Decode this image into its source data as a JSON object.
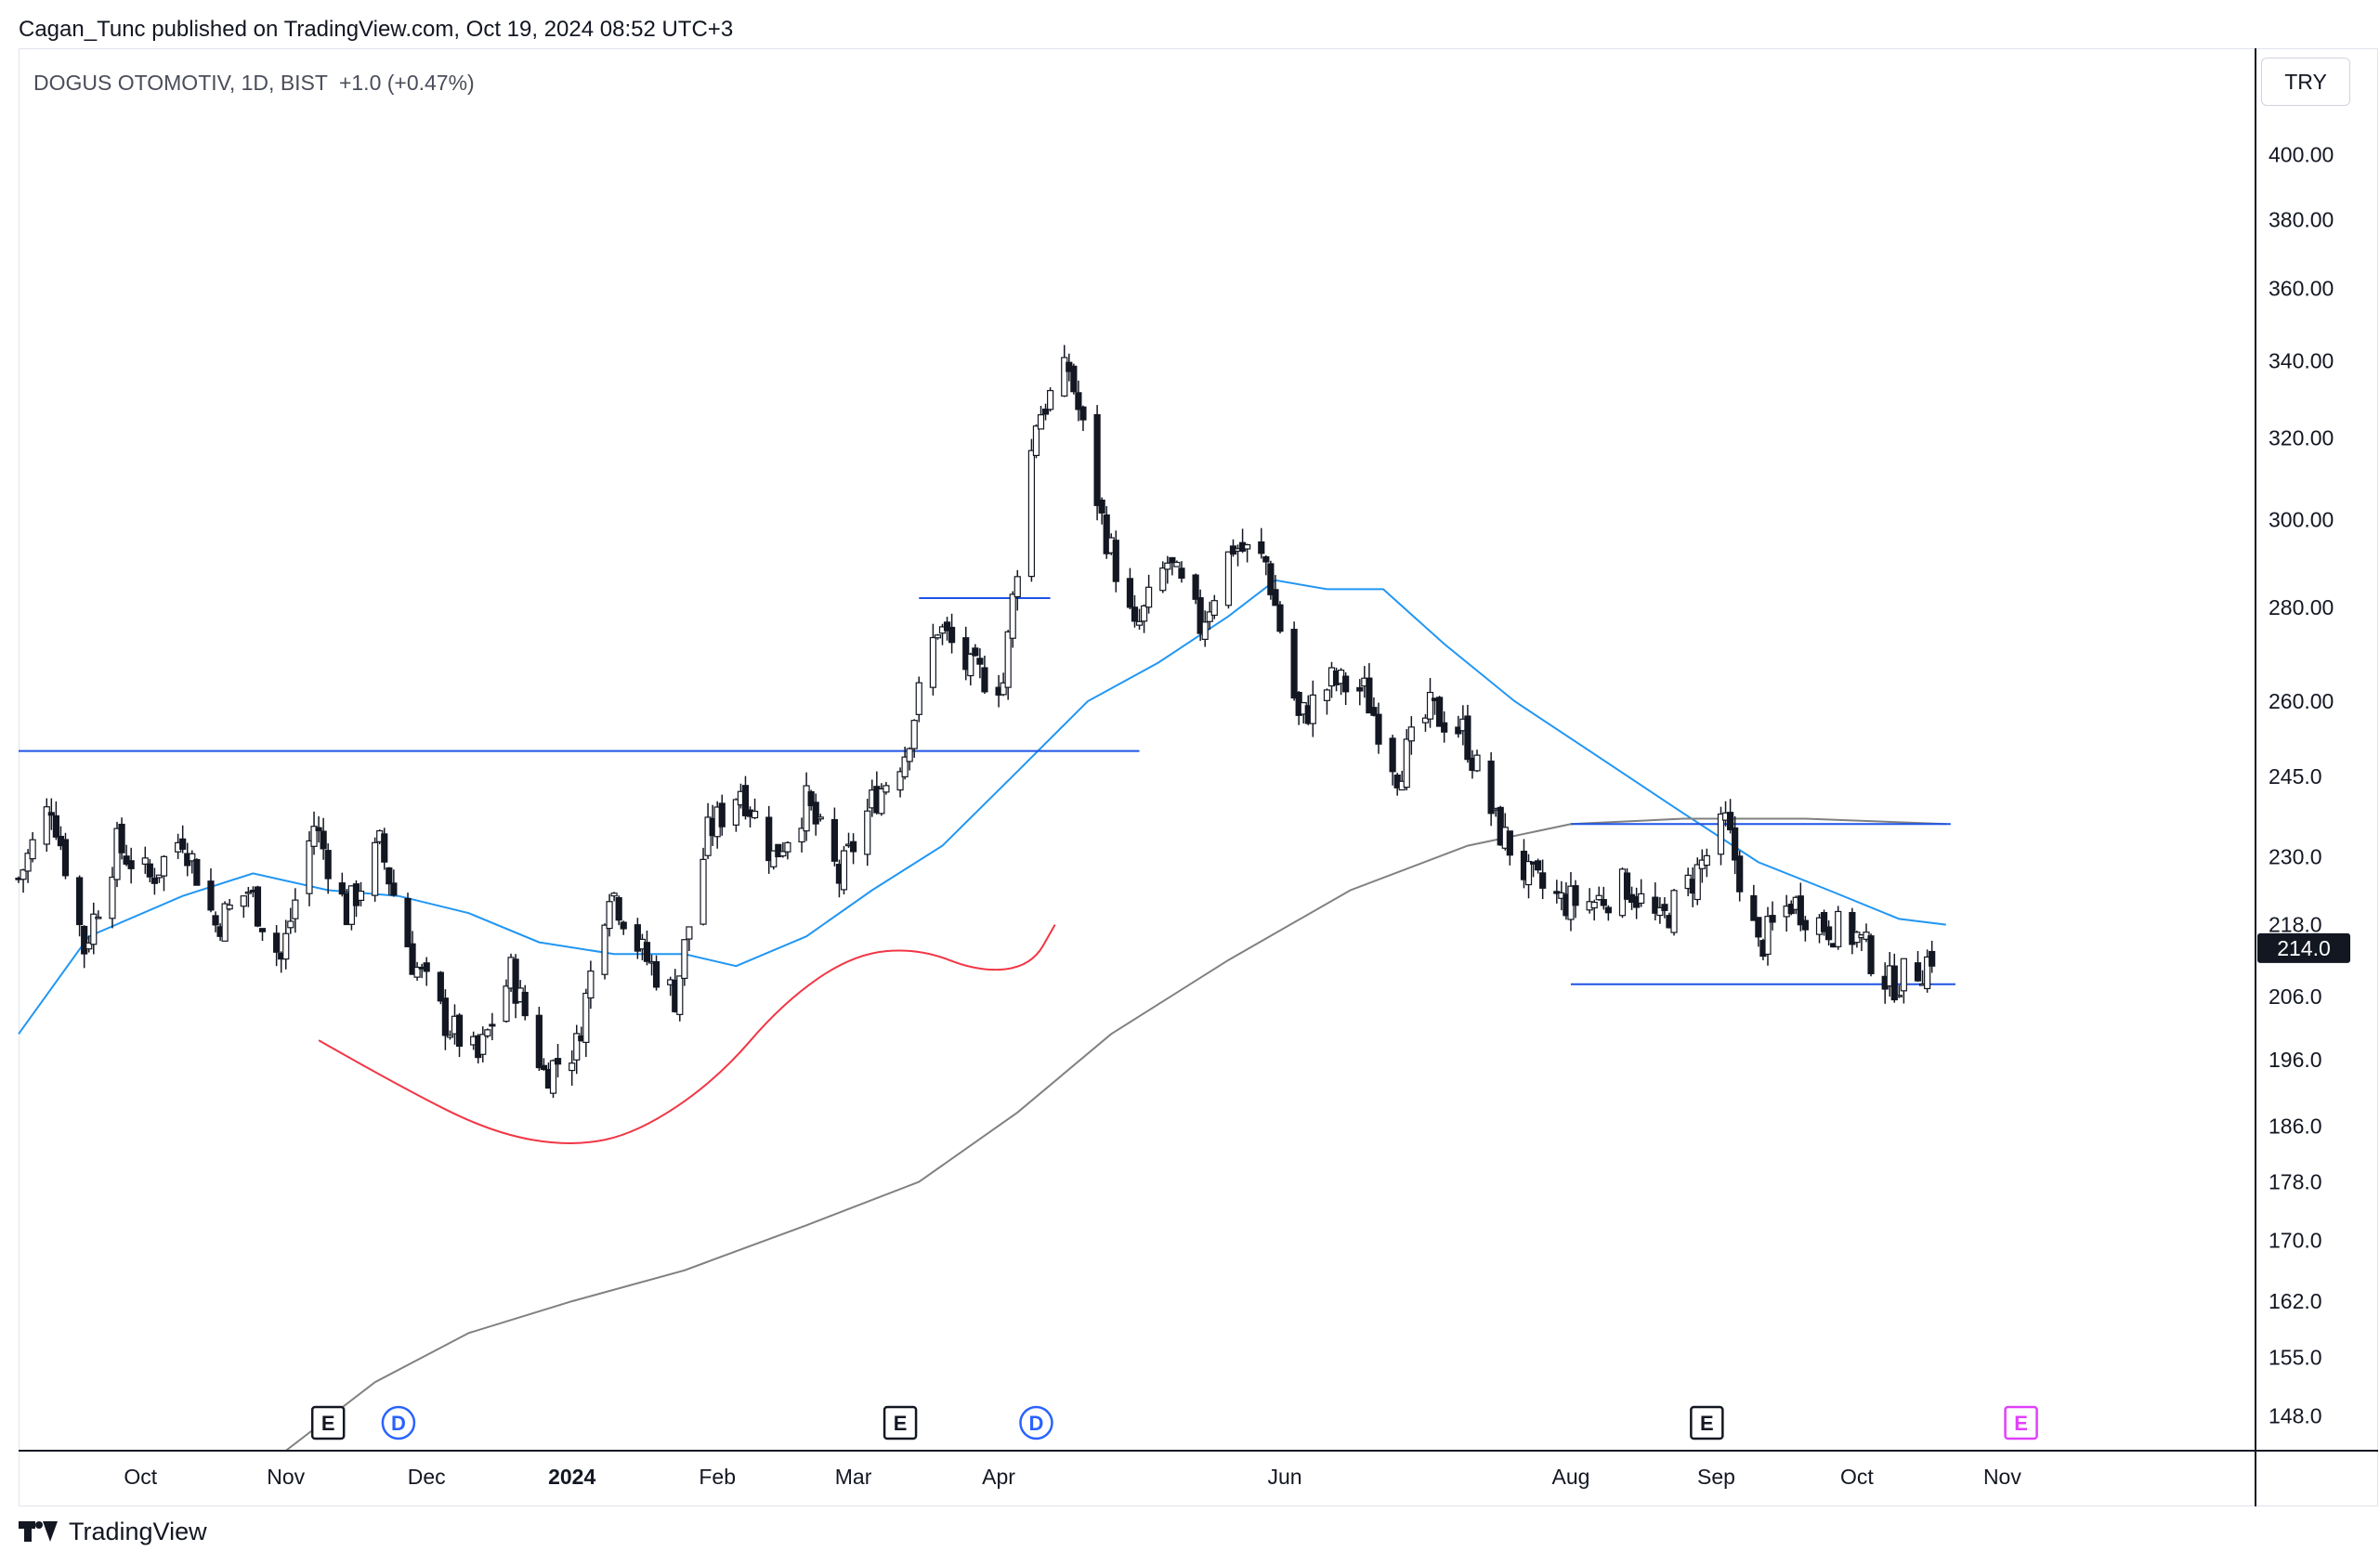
{
  "header": {
    "author": "Cagan_Tunc",
    "published_text": "published on TradingView.com, Oct 19, 2024 08:52 UTC+3"
  },
  "symbol": {
    "name": "DOGUS OTOMOTIV, 1D, BIST",
    "change": "+1.0 (+0.47%)"
  },
  "currency": "TRY",
  "footer": {
    "brand": "TradingView"
  },
  "colors": {
    "up_candle": "#ffffff",
    "down_candle": "#131722",
    "ma_fast": "#2196f3",
    "ma_slow": "#808080",
    "arc": "#f23645",
    "hline": "#1e53e5",
    "axis_text": "#131722",
    "marker_d": "#2962ff",
    "marker_e_future": "#e040fb"
  },
  "chart_data": {
    "type": "candlestick",
    "title": "DOGUS OTOMOTIV, 1D, BIST",
    "ylabel": "TRY",
    "y_scale": "log",
    "ylim": [
      144,
      420
    ],
    "last_price": "214.0",
    "y_ticks": [
      "400.00",
      "380.00",
      "360.00",
      "340.00",
      "320.00",
      "300.00",
      "280.00",
      "260.00",
      "245.0",
      "230.0",
      "218.0",
      "206.0",
      "196.0",
      "186.0",
      "178.0",
      "170.0",
      "162.0",
      "155.0",
      "148.0"
    ],
    "x_ticks": [
      "Oct",
      "Nov",
      "Dec",
      "2024",
      "Feb",
      "Mar",
      "Apr",
      "Jun",
      "Aug",
      "Sep",
      "Oct",
      "Nov"
    ],
    "x_tick_dates": [
      "2023-10-01",
      "2023-11-01",
      "2023-12-01",
      "2024-01-01",
      "2024-02-01",
      "2024-03-01",
      "2024-04-01",
      "2024-06-01",
      "2024-08-01",
      "2024-09-01",
      "2024-10-01",
      "2024-11-01"
    ],
    "x_range": [
      "2023-09-05",
      "2024-12-25"
    ],
    "price_path": [
      {
        "date": "2023-09-05",
        "close": 226
      },
      {
        "date": "2023-09-12",
        "close": 240
      },
      {
        "date": "2023-09-19",
        "close": 214
      },
      {
        "date": "2023-09-26",
        "close": 232
      },
      {
        "date": "2023-10-03",
        "close": 226
      },
      {
        "date": "2023-10-10",
        "close": 234
      },
      {
        "date": "2023-10-17",
        "close": 218
      },
      {
        "date": "2023-10-24",
        "close": 224
      },
      {
        "date": "2023-10-31",
        "close": 212
      },
      {
        "date": "2023-11-07",
        "close": 236
      },
      {
        "date": "2023-11-14",
        "close": 220
      },
      {
        "date": "2023-11-21",
        "close": 232
      },
      {
        "date": "2023-11-28",
        "close": 212
      },
      {
        "date": "2023-12-05",
        "close": 202
      },
      {
        "date": "2023-12-12",
        "close": 196
      },
      {
        "date": "2023-12-19",
        "close": 210
      },
      {
        "date": "2023-12-26",
        "close": 194
      },
      {
        "date": "2024-01-02",
        "close": 198
      },
      {
        "date": "2024-01-09",
        "close": 225
      },
      {
        "date": "2024-01-16",
        "close": 213
      },
      {
        "date": "2024-01-23",
        "close": 206
      },
      {
        "date": "2024-01-30",
        "close": 234
      },
      {
        "date": "2024-02-06",
        "close": 243
      },
      {
        "date": "2024-02-13",
        "close": 230
      },
      {
        "date": "2024-02-20",
        "close": 240
      },
      {
        "date": "2024-02-27",
        "close": 226
      },
      {
        "date": "2024-03-05",
        "close": 240
      },
      {
        "date": "2024-03-12",
        "close": 250
      },
      {
        "date": "2024-03-19",
        "close": 276
      },
      {
        "date": "2024-03-26",
        "close": 266
      },
      {
        "date": "2024-04-02",
        "close": 264
      },
      {
        "date": "2024-04-09",
        "close": 325
      },
      {
        "date": "2024-04-16",
        "close": 338
      },
      {
        "date": "2024-04-23",
        "close": 300
      },
      {
        "date": "2024-04-30",
        "close": 274
      },
      {
        "date": "2024-05-07",
        "close": 290
      },
      {
        "date": "2024-05-14",
        "close": 276
      },
      {
        "date": "2024-05-21",
        "close": 294
      },
      {
        "date": "2024-05-28",
        "close": 290
      },
      {
        "date": "2024-06-04",
        "close": 256
      },
      {
        "date": "2024-06-11",
        "close": 264
      },
      {
        "date": "2024-06-18",
        "close": 262
      },
      {
        "date": "2024-06-25",
        "close": 246
      },
      {
        "date": "2024-07-02",
        "close": 258
      },
      {
        "date": "2024-07-09",
        "close": 254
      },
      {
        "date": "2024-07-16",
        "close": 236
      },
      {
        "date": "2024-07-23",
        "close": 226
      },
      {
        "date": "2024-07-30",
        "close": 222
      },
      {
        "date": "2024-08-06",
        "close": 222
      },
      {
        "date": "2024-08-13",
        "close": 225
      },
      {
        "date": "2024-08-20",
        "close": 218
      },
      {
        "date": "2024-08-27",
        "close": 226
      },
      {
        "date": "2024-09-03",
        "close": 236
      },
      {
        "date": "2024-09-10",
        "close": 214
      },
      {
        "date": "2024-09-17",
        "close": 222
      },
      {
        "date": "2024-09-24",
        "close": 218
      },
      {
        "date": "2024-10-01",
        "close": 216
      },
      {
        "date": "2024-10-08",
        "close": 208
      },
      {
        "date": "2024-10-15",
        "close": 211
      },
      {
        "date": "2024-10-18",
        "close": 214
      }
    ],
    "series": [
      {
        "color": "#2196f3",
        "points": [
          {
            "date": "2023-09-05",
            "value": 200
          },
          {
            "date": "2023-09-20",
            "value": 216
          },
          {
            "date": "2023-10-10",
            "value": 223
          },
          {
            "date": "2023-10-25",
            "value": 227
          },
          {
            "date": "2023-11-10",
            "value": 224
          },
          {
            "date": "2023-11-25",
            "value": 223
          },
          {
            "date": "2023-12-10",
            "value": 220
          },
          {
            "date": "2023-12-25",
            "value": 215
          },
          {
            "date": "2024-01-10",
            "value": 213
          },
          {
            "date": "2024-01-25",
            "value": 213
          },
          {
            "date": "2024-02-05",
            "value": 211
          },
          {
            "date": "2024-02-20",
            "value": 216
          },
          {
            "date": "2024-03-05",
            "value": 224
          },
          {
            "date": "2024-03-20",
            "value": 232
          },
          {
            "date": "2024-04-05",
            "value": 246
          },
          {
            "date": "2024-04-20",
            "value": 260
          },
          {
            "date": "2024-05-05",
            "value": 268
          },
          {
            "date": "2024-05-20",
            "value": 278
          },
          {
            "date": "2024-05-30",
            "value": 286
          },
          {
            "date": "2024-06-10",
            "value": 284
          },
          {
            "date": "2024-06-22",
            "value": 284
          },
          {
            "date": "2024-07-05",
            "value": 272
          },
          {
            "date": "2024-07-20",
            "value": 260
          },
          {
            "date": "2024-08-05",
            "value": 250
          },
          {
            "date": "2024-08-25",
            "value": 238
          },
          {
            "date": "2024-09-10",
            "value": 229
          },
          {
            "date": "2024-09-25",
            "value": 224
          },
          {
            "date": "2024-10-10",
            "value": 219
          },
          {
            "date": "2024-10-20",
            "value": 218
          }
        ]
      },
      {
        "color": "#808080",
        "points": [
          {
            "date": "2023-11-01",
            "value": 144
          },
          {
            "date": "2023-11-20",
            "value": 152
          },
          {
            "date": "2023-12-10",
            "value": 158
          },
          {
            "date": "2024-01-01",
            "value": 162
          },
          {
            "date": "2024-01-25",
            "value": 166
          },
          {
            "date": "2024-02-20",
            "value": 172
          },
          {
            "date": "2024-03-15",
            "value": 178
          },
          {
            "date": "2024-04-05",
            "value": 188
          },
          {
            "date": "2024-04-25",
            "value": 200
          },
          {
            "date": "2024-05-20",
            "value": 212
          },
          {
            "date": "2024-06-15",
            "value": 224
          },
          {
            "date": "2024-07-10",
            "value": 232
          },
          {
            "date": "2024-08-01",
            "value": 236
          },
          {
            "date": "2024-08-25",
            "value": 237
          },
          {
            "date": "2024-09-20",
            "value": 237
          },
          {
            "date": "2024-10-20",
            "value": 236
          }
        ]
      }
    ],
    "drawings": {
      "horizontal_lines": [
        {
          "price": 250,
          "from": "2023-09-05",
          "to": "2024-05-01"
        },
        {
          "price": 282,
          "from": "2024-03-15",
          "to": "2024-04-12"
        },
        {
          "price": 236,
          "from": "2024-08-01",
          "to": "2024-10-21"
        },
        {
          "price": 208,
          "from": "2024-08-01",
          "to": "2024-10-22"
        }
      ],
      "arcs": [
        {
          "points": [
            {
              "date": "2023-11-08",
              "value": 199
            },
            {
              "date": "2023-11-25",
              "value": 192
            },
            {
              "date": "2023-12-15",
              "value": 185
            },
            {
              "date": "2024-01-01",
              "value": 183
            },
            {
              "date": "2024-01-15",
              "value": 185
            },
            {
              "date": "2024-02-01",
              "value": 193
            },
            {
              "date": "2024-02-15",
              "value": 205
            },
            {
              "date": "2024-03-01",
              "value": 213
            },
            {
              "date": "2024-03-15",
              "value": 214
            },
            {
              "date": "2024-03-28",
              "value": 210
            },
            {
              "date": "2024-04-08",
              "value": 211
            },
            {
              "date": "2024-04-13",
              "value": 218
            }
          ]
        }
      ]
    },
    "event_markers": [
      {
        "label": "E",
        "date": "2023-11-10",
        "kind": "earnings"
      },
      {
        "label": "D",
        "date": "2023-11-25",
        "kind": "dividend"
      },
      {
        "label": "E",
        "date": "2024-03-11",
        "kind": "earnings"
      },
      {
        "label": "D",
        "date": "2024-04-09",
        "kind": "dividend"
      },
      {
        "label": "E",
        "date": "2024-08-30",
        "kind": "earnings"
      },
      {
        "label": "E",
        "date": "2024-11-05",
        "kind": "earnings-upcoming"
      }
    ]
  }
}
